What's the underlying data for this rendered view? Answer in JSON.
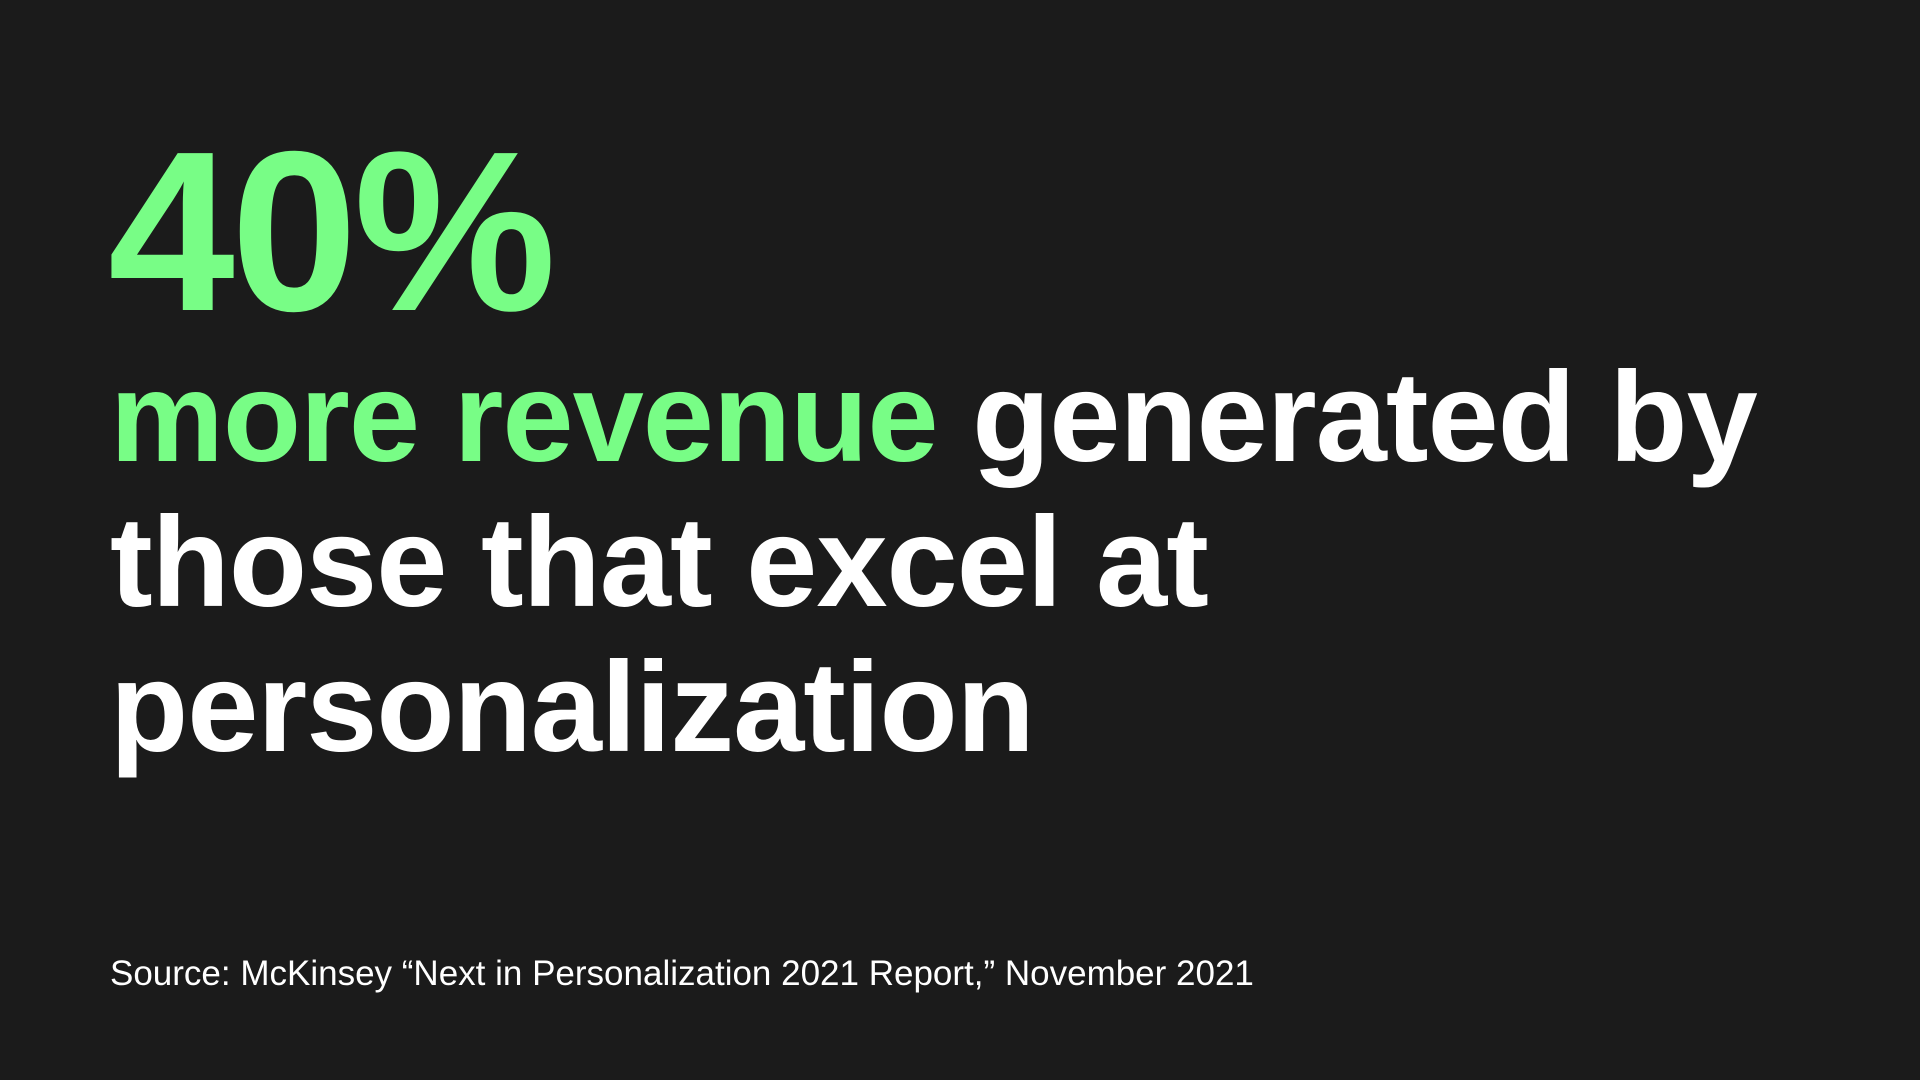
{
  "slide": {
    "stat": "40%",
    "headline": {
      "accent_text": "more revenue",
      "text": " generated by those that excel at personalization"
    },
    "source": "Source: McKinsey “Next in Personalization 2021 Report,” November 2021"
  },
  "colors": {
    "background": "#1b1b1b",
    "accent": "#78fd86",
    "text": "#ffffff"
  }
}
